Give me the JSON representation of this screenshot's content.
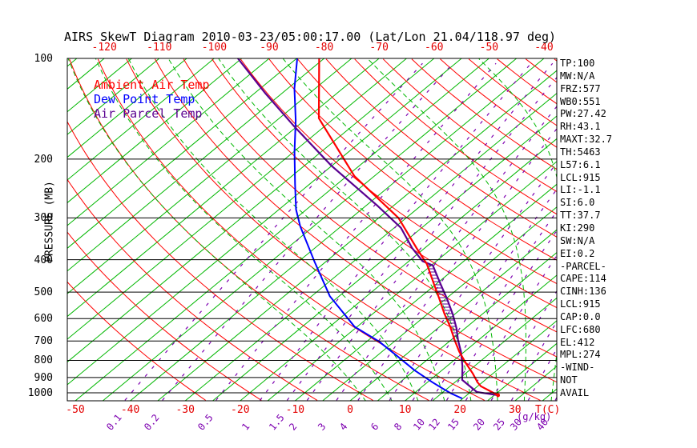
{
  "title": "AIRS SkewT Diagram 2010-03-23/05:00:17.00 (Lat/Lon 21.04/118.97 deg)",
  "legend": [
    {
      "label": "Ambient Air Temp",
      "color": "#ff0000"
    },
    {
      "label": "Dew Point Temp",
      "color": "#0000ff"
    },
    {
      "label": "Air Parcel Temp",
      "color": "#5a0090"
    }
  ],
  "stats": {
    "lines": [
      "TP:100",
      "MW:N/A",
      "FRZ:577",
      "WB0:551",
      "PW:27.42",
      "RH:43.1",
      "MAXT:32.7",
      "TH:5463",
      "L57:6.1",
      "LCL:915",
      "LI:-1.1",
      "SI:6.0",
      "TT:37.7",
      "KI:290",
      "SW:N/A",
      "EI:0.2",
      "-PARCEL-",
      "CAPE:114",
      "CINH:136",
      "LCL:915",
      "CAP:0.0",
      "LFC:680",
      "EL:412",
      "MPL:274",
      "-WIND-",
      "NOT",
      "AVAIL"
    ]
  },
  "axes": {
    "pressure_label": "PRESSURE (MB)",
    "pressure_ticks": [
      100,
      200,
      300,
      400,
      500,
      600,
      700,
      800,
      900,
      1000
    ],
    "top_temp_ticks_c": [
      -120,
      -110,
      -100,
      -90,
      -80,
      -70,
      -60,
      -50,
      -40
    ],
    "bottom_temp_ticks_c": [
      -50,
      -40,
      -30,
      -20,
      -10,
      0,
      10,
      20,
      30
    ],
    "temp_unit_label": "T(C)",
    "mixing_unit_label": "(g/kg)",
    "mixing_ratio_values_gkg": [
      0.1,
      0.2,
      0.5,
      1,
      1.5,
      2,
      3,
      4,
      6,
      8,
      10,
      12,
      15,
      20,
      25,
      30,
      40
    ]
  },
  "colors": {
    "isotherm": "#00b700",
    "dry_adiabat": "#ff0000",
    "moist_adiabat": "#00b700",
    "mixing_ratio": "#7d00b0",
    "grid": "#000000",
    "ambient": "#ff0000",
    "dewpoint": "#0000ff",
    "parcel": "#5a0090"
  },
  "chart_data": {
    "type": "skewt_log_p",
    "title": "AIRS SkewT Diagram 2010-03-23/05:00:17.00 (Lat/Lon 21.04/118.97 deg)",
    "ylabel": "PRESSURE (MB)",
    "xlabel": "T(C)",
    "pressure_range_mb": [
      100,
      1053
    ],
    "surface_temp_axis_range_c": [
      -55,
      38
    ],
    "isotherm_step_c": 5,
    "dry_adiabat_theta_step_c": 10,
    "moist_adiabat_thetaw_c": [
      0,
      5,
      10,
      15,
      20,
      25,
      30,
      35,
      40
    ],
    "cape_hatch_pressure_range_mb": [
      416,
      690
    ],
    "series": [
      {
        "name": "Ambient Air Temp",
        "color": "#ff0000",
        "points_p_t": [
          [
            100,
            -80.9
          ],
          [
            151,
            -67.8
          ],
          [
            225,
            -48.6
          ],
          [
            300,
            -31.4
          ],
          [
            369,
            -21.5
          ],
          [
            412,
            -16.1
          ],
          [
            473,
            -10.4
          ],
          [
            522,
            -6.3
          ],
          [
            580,
            -2.0
          ],
          [
            634,
            1.9
          ],
          [
            696,
            5.7
          ],
          [
            754,
            9.1
          ],
          [
            819,
            13.0
          ],
          [
            875,
            16.3
          ],
          [
            930,
            19.1
          ],
          [
            956,
            20.6
          ],
          [
            983,
            22.9
          ],
          [
            1017,
            25.7
          ]
        ]
      },
      {
        "name": "Dew Point Temp",
        "color": "#0000ff",
        "points_p_t": [
          [
            100,
            -84.9
          ],
          [
            123,
            -78.8
          ],
          [
            153,
            -71.6
          ],
          [
            190,
            -64.9
          ],
          [
            238,
            -57.6
          ],
          [
            283,
            -51.9
          ],
          [
            318,
            -47.4
          ],
          [
            406,
            -37.0
          ],
          [
            514,
            -26.7
          ],
          [
            634,
            -15.5
          ],
          [
            702,
            -7.8
          ],
          [
            775,
            -1.4
          ],
          [
            856,
            5.0
          ],
          [
            930,
            10.9
          ],
          [
            978,
            14.7
          ],
          [
            1005,
            16.8
          ],
          [
            1040,
            19.9
          ]
        ]
      },
      {
        "name": "Air Parcel Temp",
        "color": "#5a0090",
        "points_p_t": [
          [
            100,
            -95.7
          ],
          [
            127,
            -83.1
          ],
          [
            160,
            -70.4
          ],
          [
            209,
            -55.2
          ],
          [
            275,
            -38.1
          ],
          [
            321,
            -28.8
          ],
          [
            369,
            -22.3
          ],
          [
            404,
            -17.5
          ],
          [
            416,
            -14.7
          ],
          [
            473,
            -9.2
          ],
          [
            522,
            -4.9
          ],
          [
            583,
            -0.3
          ],
          [
            641,
            3.4
          ],
          [
            696,
            6.3
          ],
          [
            754,
            9.4
          ],
          [
            832,
            12.8
          ],
          [
            915,
            15.8
          ],
          [
            994,
            21.1
          ],
          [
            1017,
            25.7
          ]
        ]
      }
    ]
  }
}
